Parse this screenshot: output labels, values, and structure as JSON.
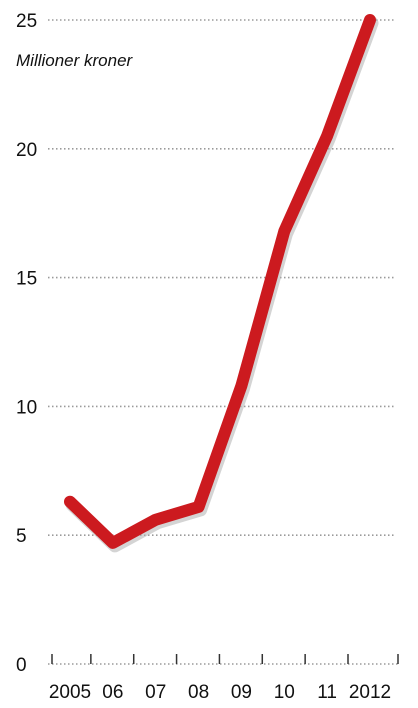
{
  "chart_data": {
    "type": "line",
    "title": "",
    "unit_label": "Millioner kroner",
    "xlabel": "",
    "ylabel": "",
    "x_tick_labels": [
      "2005",
      "06",
      "07",
      "08",
      "09",
      "10",
      "11",
      "2012"
    ],
    "y_tick_labels": [
      "0",
      "5",
      "10",
      "15",
      "20",
      "25"
    ],
    "ylim": [
      0,
      25
    ],
    "grid": "horizontal dotted",
    "legend": "none",
    "series": [
      {
        "x": [
          "2005",
          "06",
          "07",
          "08",
          "09",
          "10",
          "11",
          "2012"
        ],
        "values": [
          6.3,
          4.7,
          5.6,
          6.1,
          10.8,
          16.8,
          20.5,
          25.0
        ],
        "color": "#cc1a1f"
      }
    ],
    "colors": {
      "line": "#cc1a1f",
      "line_shadow": "#b0b0b0",
      "gridline": "#9a9a9a",
      "axis": "#333333",
      "text": "#111111"
    }
  }
}
